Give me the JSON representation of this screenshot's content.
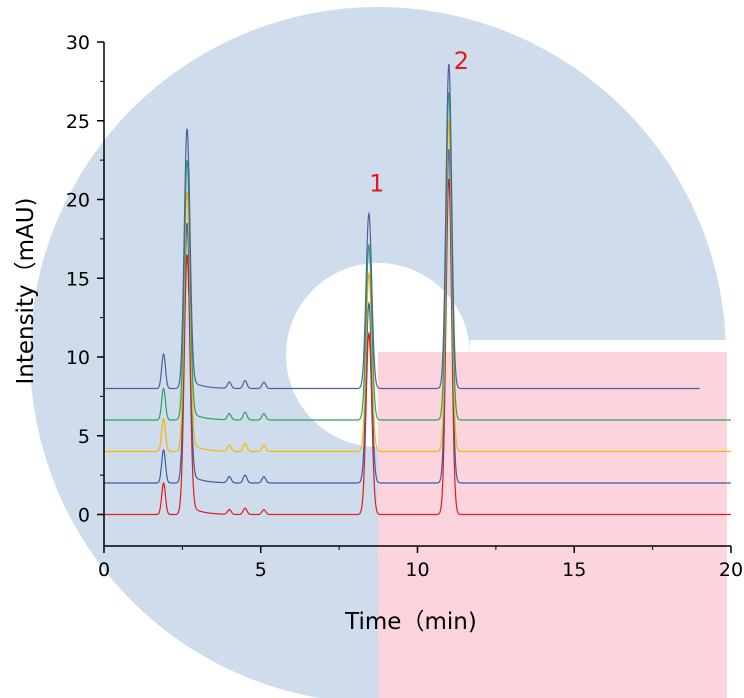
{
  "chart_data": {
    "type": "line",
    "xlabel": "Time（min)",
    "ylabel": "Intensity（mAU)",
    "xlim": [
      0,
      20
    ],
    "ylim": [
      -2,
      30
    ],
    "x_ticks": [
      "0",
      "5",
      "10",
      "15",
      "20"
    ],
    "y_ticks": [
      "0",
      "5",
      "10",
      "15",
      "20",
      "25",
      "30"
    ],
    "grid": false,
    "legend": "none",
    "annotations": [
      {
        "text": "1",
        "x": 8.7,
        "y": 20.5,
        "color": "#e31a1c"
      },
      {
        "text": "2",
        "x": 11.4,
        "y": 28.3,
        "color": "#e31a1c"
      }
    ],
    "series": [
      {
        "color": "#e41a1c",
        "baseline": 0,
        "x_end": 20,
        "peaks": [
          [
            1.9,
            2.0
          ],
          [
            2.65,
            16.5
          ],
          [
            4.0,
            0.3
          ],
          [
            4.5,
            0.4
          ],
          [
            5.1,
            0.3
          ],
          [
            8.45,
            11.5
          ],
          [
            11.0,
            21.3
          ]
        ]
      },
      {
        "color": "#3b5ba5",
        "baseline": 2,
        "x_end": 20,
        "peaks": [
          [
            1.9,
            4.1
          ],
          [
            2.65,
            18.5
          ],
          [
            4.0,
            2.4
          ],
          [
            4.5,
            2.5
          ],
          [
            5.1,
            2.4
          ],
          [
            8.45,
            13.4
          ],
          [
            11.0,
            23.2
          ]
        ]
      },
      {
        "color": "#f5b800",
        "baseline": 4,
        "x_end": 20,
        "peaks": [
          [
            1.9,
            6.1
          ],
          [
            2.65,
            20.5
          ],
          [
            4.0,
            4.4
          ],
          [
            4.5,
            4.5
          ],
          [
            5.1,
            4.4
          ],
          [
            8.45,
            15.3
          ],
          [
            11.0,
            25.0
          ]
        ]
      },
      {
        "color": "#2ca25f",
        "baseline": 6,
        "x_end": 20,
        "peaks": [
          [
            1.9,
            8.0
          ],
          [
            2.65,
            22.5
          ],
          [
            4.0,
            6.4
          ],
          [
            4.5,
            6.5
          ],
          [
            5.1,
            6.4
          ],
          [
            8.45,
            17.1
          ],
          [
            11.0,
            26.8
          ]
        ]
      },
      {
        "color": "#4f5fa0",
        "baseline": 8,
        "x_end": 19,
        "peaks": [
          [
            1.9,
            10.2
          ],
          [
            2.65,
            24.5
          ],
          [
            4.0,
            8.4
          ],
          [
            4.5,
            8.5
          ],
          [
            5.1,
            8.4
          ],
          [
            8.45,
            19.1
          ],
          [
            11.0,
            28.6
          ]
        ]
      }
    ],
    "background_watermark": {
      "blue": "#cfdcec",
      "pink": "#fbd4de"
    }
  }
}
